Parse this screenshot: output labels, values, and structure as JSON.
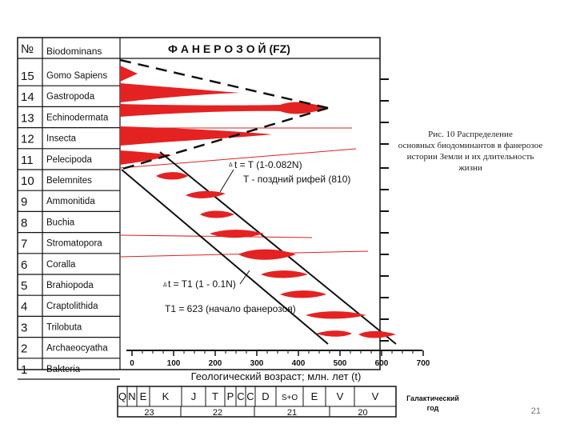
{
  "header": {
    "num_label": "№",
    "bio_label": "Biodominans",
    "title": "Ф А Н Е Р О З О Й (FZ)"
  },
  "rows": [
    {
      "num": "15",
      "name": "Gomo Sapiens"
    },
    {
      "num": "14",
      "name": "Gastropoda"
    },
    {
      "num": "13",
      "name": "Echinodermata"
    },
    {
      "num": "12",
      "name": "Insecta"
    },
    {
      "num": "11",
      "name": "Pelecipoda"
    },
    {
      "num": "10",
      "name": "Belemnites"
    },
    {
      "num": "9",
      "name": "Ammonitida"
    },
    {
      "num": "8",
      "name": "Buchia"
    },
    {
      "num": "7",
      "name": "Stromatopora"
    },
    {
      "num": "6",
      "name": "Coralla"
    },
    {
      "num": "5",
      "name": "Brahiopoda"
    },
    {
      "num": "4",
      "name": "Craptolithida"
    },
    {
      "num": "3",
      "name": "Trilobuta"
    },
    {
      "num": "2",
      "name": "Archaeocyatha"
    },
    {
      "num": "1",
      "name": "Bakteria"
    }
  ],
  "axis": {
    "ticks": [
      "0",
      "100",
      "200",
      "300",
      "400",
      "500",
      "600",
      "700"
    ],
    "label": "Геологический возраст; млн. лет (t)"
  },
  "formulas": {
    "f1": "t = T (1-0.082N)",
    "f2": "T - поздний рифей (810)",
    "f3": "t = T1 (1 - 0.1N)",
    "f4": "T1 = 623 (начало фанерозоя)"
  },
  "caption": [
    "Рис. 10 Распределение",
    "основных биодоминантов в фанерозое",
    "истории Земли и их длительность",
    "жизни"
  ],
  "periods": [
    "Q",
    "N",
    "E",
    "K",
    "J",
    "T",
    "P",
    "C",
    "C",
    "D",
    "S+O",
    "E",
    "V",
    "V"
  ],
  "galactic": {
    "years": [
      "23",
      "22",
      "21",
      "20"
    ],
    "label1": "Галактический",
    "label2": "год"
  },
  "page_number": "21"
}
